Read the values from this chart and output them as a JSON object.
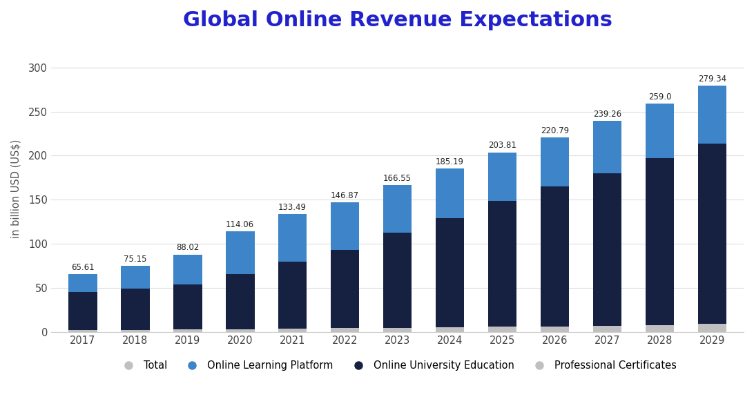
{
  "title": "Global Online Revenue Expectations",
  "ylabel": "in billion USD (US$)",
  "years": [
    "2017",
    "2018",
    "2019",
    "2020",
    "2021",
    "2022",
    "2023",
    "2024",
    "2025",
    "2026",
    "2027",
    "2028",
    "2029"
  ],
  "totals": [
    65.61,
    75.15,
    88.02,
    114.06,
    133.49,
    146.87,
    166.55,
    185.19,
    203.81,
    220.79,
    239.26,
    259.0,
    279.34
  ],
  "professional_certificates": [
    2.0,
    2.5,
    3.0,
    3.5,
    4.0,
    4.5,
    5.0,
    5.5,
    6.0,
    6.5,
    7.0,
    8.0,
    9.0
  ],
  "online_university_education": [
    43.0,
    46.5,
    51.0,
    62.5,
    75.5,
    88.5,
    107.5,
    124.0,
    143.0,
    158.5,
    173.0,
    189.5,
    204.5
  ],
  "online_learning_platform": [
    20.61,
    26.15,
    34.02,
    48.06,
    53.99,
    53.87,
    54.05,
    55.69,
    54.81,
    55.79,
    59.26,
    61.5,
    65.84
  ],
  "color_professional": "#c0c0c0",
  "color_university": "#162040",
  "color_platform": "#3d85c8",
  "color_total_legend": "#c0c0c0",
  "background_color": "#ffffff",
  "ylim": [
    0,
    325
  ],
  "yticks": [
    0,
    50,
    100,
    150,
    200,
    250,
    300
  ],
  "title_color": "#2222cc",
  "title_fontsize": 22,
  "legend_labels": [
    "Total",
    "Online Learning Platform",
    "Online University Education",
    "Professional Certificates"
  ]
}
